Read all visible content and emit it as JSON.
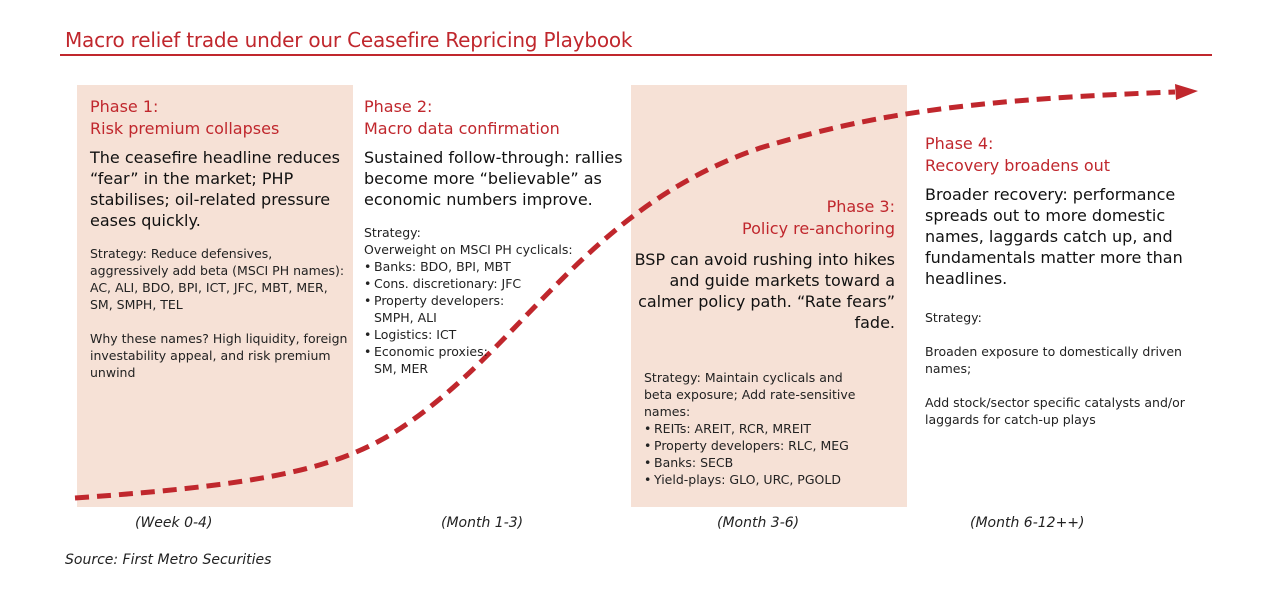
{
  "title": "Macro relief trade under our Ceasefire Repricing Playbook",
  "source": "Source: First Metro Securities",
  "colors": {
    "accent": "#c0272d",
    "panel": "#f6e1d6"
  },
  "phases": [
    {
      "title1": "Phase 1:",
      "title2": "Risk premium collapses",
      "headline": "The ceasefire headline reduces “fear” in the market; PHP stabilises; oil-related pressure eases quickly.",
      "strategy_label": "Strategy:",
      "strategy_text": " Reduce defensives, aggressively add beta (MSCI PH names): AC, ALI, BDO, BPI, ICT, JFC, MBT, MER, SM, SMPH, TEL",
      "why": "Why these names? High liquidity, foreign investability appeal, and risk premium unwind",
      "timeframe": "(Week 0-4)"
    },
    {
      "title1": "Phase 2:",
      "title2": "Macro data confirmation",
      "headline": "Sustained follow-through: rallies become more “believable” as economic numbers improve.",
      "strategy_label": "Strategy:",
      "strategy_intro": "Overweight on MSCI PH cyclicals:",
      "bullets": [
        "Banks: BDO, BPI, MBT",
        "Cons. discretionary: JFC",
        "Property developers: SMPH, ALI",
        "Logistics: ICT",
        "Economic proxies: SM, MER"
      ],
      "timeframe": "(Month 1-3)"
    },
    {
      "title1": "Phase 3:",
      "title2": "Policy re-anchoring",
      "headline": "BSP can avoid rushing into hikes and guide markets toward a calmer policy path. “Rate fears” fade.",
      "strategy_label": "Strategy:",
      "strategy_text": " Maintain cyclicals and beta exposure; Add rate-sensitive names:",
      "bullets": [
        "REITs: AREIT, RCR, MREIT",
        "Property developers: RLC, MEG",
        "Banks: SECB",
        "Yield-plays: GLO, URC, PGOLD"
      ],
      "timeframe": "(Month 3-6)"
    },
    {
      "title1": "Phase 4:",
      "title2": "Recovery broadens out",
      "headline": "Broader recovery: performance spreads out to more domestic names, laggards catch up, and fundamentals matter more than headlines.",
      "strategy_label": "Strategy:",
      "strategy_p1": "Broaden exposure to domestically driven names;",
      "strategy_p2": "Add stock/sector specific catalysts and/or laggards for catch-up plays",
      "timeframe": "(Month 6-12++)"
    }
  ]
}
